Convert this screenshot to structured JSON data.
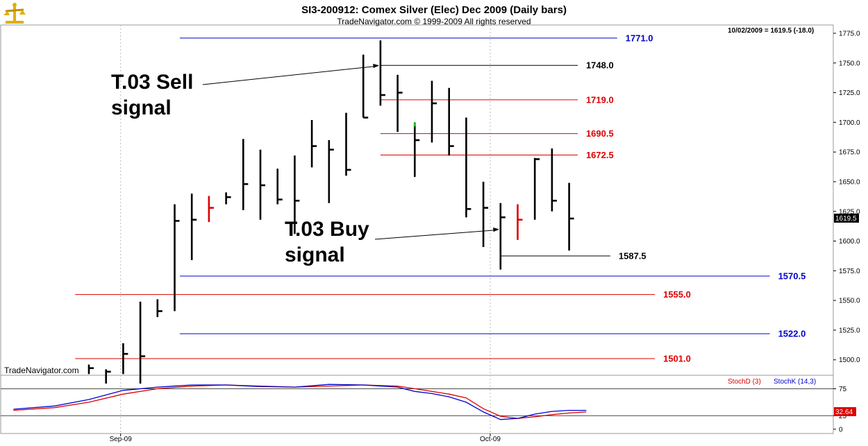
{
  "header": {
    "title": "SI3-200912:  Comex Silver (Elec) Dec 2009  (Daily bars)",
    "subtitle": "TradeNavigator.com © 1999-2009 All rights reserved",
    "last_quote": "10/02/2009 = 1619.5 (-18.0)",
    "watermark": "TradeNavigator.com"
  },
  "colors": {
    "blue": "#0000cc",
    "red": "#dd0000",
    "black": "#000000",
    "green": "#00cc00",
    "bg": "#ffffff"
  },
  "chart_data": [
    {
      "type": "ohlc",
      "ylim": [
        1487,
        1782
      ],
      "yticks": [
        1500.0,
        1525.0,
        1550.0,
        1575.0,
        1600.0,
        1625.0,
        1650.0,
        1675.0,
        1700.0,
        1725.0,
        1750.0,
        1775.0
      ],
      "xtick_labels": [
        {
          "label": "Sep-09",
          "index": 1.85
        },
        {
          "label": "Oct-09",
          "index": 23.4
        }
      ],
      "last_price_label": "1619.5",
      "bars": [
        {
          "high": 1496,
          "low": 1488,
          "close": 1493,
          "color": "black"
        },
        {
          "high": 1492,
          "low": 1480,
          "close": 1490,
          "color": "black"
        },
        {
          "high": 1514,
          "low": 1488,
          "close": 1505,
          "color": "black"
        },
        {
          "high": 1549,
          "low": 1480,
          "close": 1503,
          "color": "black"
        },
        {
          "high": 1551,
          "low": 1536,
          "close": 1541,
          "color": "black"
        },
        {
          "high": 1631,
          "low": 1541,
          "close": 1617,
          "color": "black"
        },
        {
          "high": 1640,
          "low": 1584,
          "close": 1618,
          "color": "black"
        },
        {
          "high": 1638,
          "low": 1616,
          "close": 1628,
          "color": "red"
        },
        {
          "high": 1641,
          "low": 1631,
          "close": 1637,
          "color": "black"
        },
        {
          "high": 1686,
          "low": 1626,
          "close": 1648,
          "color": "black"
        },
        {
          "high": 1677,
          "low": 1618,
          "close": 1647,
          "color": "black"
        },
        {
          "high": 1661,
          "low": 1631,
          "close": 1635,
          "color": "black"
        },
        {
          "high": 1672,
          "low": 1606,
          "close": 1634,
          "color": "black"
        },
        {
          "high": 1702,
          "low": 1662,
          "close": 1680,
          "color": "black"
        },
        {
          "high": 1685,
          "low": 1632,
          "close": 1677,
          "color": "black"
        },
        {
          "high": 1708,
          "low": 1655,
          "close": 1660,
          "color": "black"
        },
        {
          "high": 1757,
          "low": 1704,
          "close": 1704,
          "color": "black"
        },
        {
          "high": 1769,
          "low": 1714,
          "close": 1723,
          "color": "black"
        },
        {
          "high": 1740,
          "low": 1692,
          "close": 1725,
          "color": "black"
        },
        {
          "high": 1700,
          "low": 1654,
          "close": 1685,
          "color": "black",
          "top_accent": "green"
        },
        {
          "high": 1735,
          "low": 1683,
          "close": 1716,
          "color": "black"
        },
        {
          "high": 1729,
          "low": 1672,
          "close": 1680,
          "color": "black"
        },
        {
          "high": 1704,
          "low": 1620,
          "close": 1627,
          "color": "black"
        },
        {
          "high": 1650,
          "low": 1595,
          "close": 1628,
          "color": "black"
        },
        {
          "high": 1632,
          "low": 1576,
          "close": 1620,
          "color": "black"
        },
        {
          "high": 1631,
          "low": 1601,
          "close": 1618,
          "color": "red"
        },
        {
          "high": 1670,
          "low": 1618,
          "close": 1669,
          "color": "black"
        },
        {
          "high": 1678,
          "low": 1625,
          "close": 1634,
          "color": "black"
        },
        {
          "high": 1649,
          "low": 1592,
          "close": 1619,
          "color": "black"
        }
      ],
      "levels": [
        {
          "label": "1771.0",
          "value": 1771.0,
          "color": "blue",
          "from": 5.3,
          "to": 30.8
        },
        {
          "label": "1748.0",
          "value": 1748.0,
          "color": "black",
          "from": 17.0,
          "to": 28.5
        },
        {
          "label": "1719.0",
          "value": 1719.0,
          "color": "red",
          "from": 17.0,
          "to": 28.5
        },
        {
          "label": "1690.5",
          "value": 1690.5,
          "color": "red",
          "from": 17.0,
          "to": 28.5
        },
        {
          "label": "1672.5",
          "value": 1672.5,
          "color": "red",
          "from": 17.0,
          "to": 28.5
        },
        {
          "label": "1587.5",
          "value": 1587.5,
          "color": "black",
          "from": 24.0,
          "to": 30.4
        },
        {
          "label": "1570.5",
          "value": 1570.5,
          "color": "blue",
          "from": 5.3,
          "to": 39.7
        },
        {
          "label": "1555.0",
          "value": 1555.0,
          "color": "red",
          "from": -0.8,
          "to": 33.0
        },
        {
          "label": "1522.0",
          "value": 1522.0,
          "color": "blue",
          "from": 5.3,
          "to": 39.7
        },
        {
          "label": "1501.0",
          "value": 1501.0,
          "color": "red",
          "from": -0.8,
          "to": 33.0
        }
      ],
      "annotations": [
        {
          "lines": [
            "T.03 Sell",
            "signal"
          ],
          "arrow_to": {
            "index": 17.0,
            "value": 1748
          }
        },
        {
          "lines": [
            "T.03 Buy",
            "signal"
          ],
          "arrow_to": {
            "index": 24.0,
            "value": 1610
          }
        }
      ]
    },
    {
      "type": "line",
      "ylim": [
        -8,
        100
      ],
      "yticks": [
        0,
        25,
        75
      ],
      "legend": [
        {
          "name": "StochD (3)",
          "color": "red"
        },
        {
          "name": "StochK (14,3)",
          "color": "blue"
        }
      ],
      "last_value_label": "32.64",
      "x": [
        -4.4,
        -2,
        0,
        2,
        4,
        6,
        8,
        10,
        12,
        14,
        16,
        18,
        19,
        20,
        21,
        22,
        23,
        24,
        25,
        26,
        27,
        28,
        29
      ],
      "series": [
        {
          "name": "StochD (3)",
          "color": "red",
          "values": [
            35,
            40,
            50,
            65,
            75,
            80,
            82,
            80,
            78,
            80,
            82,
            80,
            75,
            70,
            65,
            58,
            38,
            24,
            20,
            23,
            27,
            30,
            32
          ]
        },
        {
          "name": "StochK (14,3)",
          "color": "blue",
          "values": [
            37,
            43,
            55,
            72,
            78,
            82,
            82,
            79,
            78,
            83,
            82,
            78,
            70,
            66,
            60,
            50,
            32,
            18,
            20,
            28,
            33,
            35,
            35
          ]
        }
      ]
    }
  ]
}
